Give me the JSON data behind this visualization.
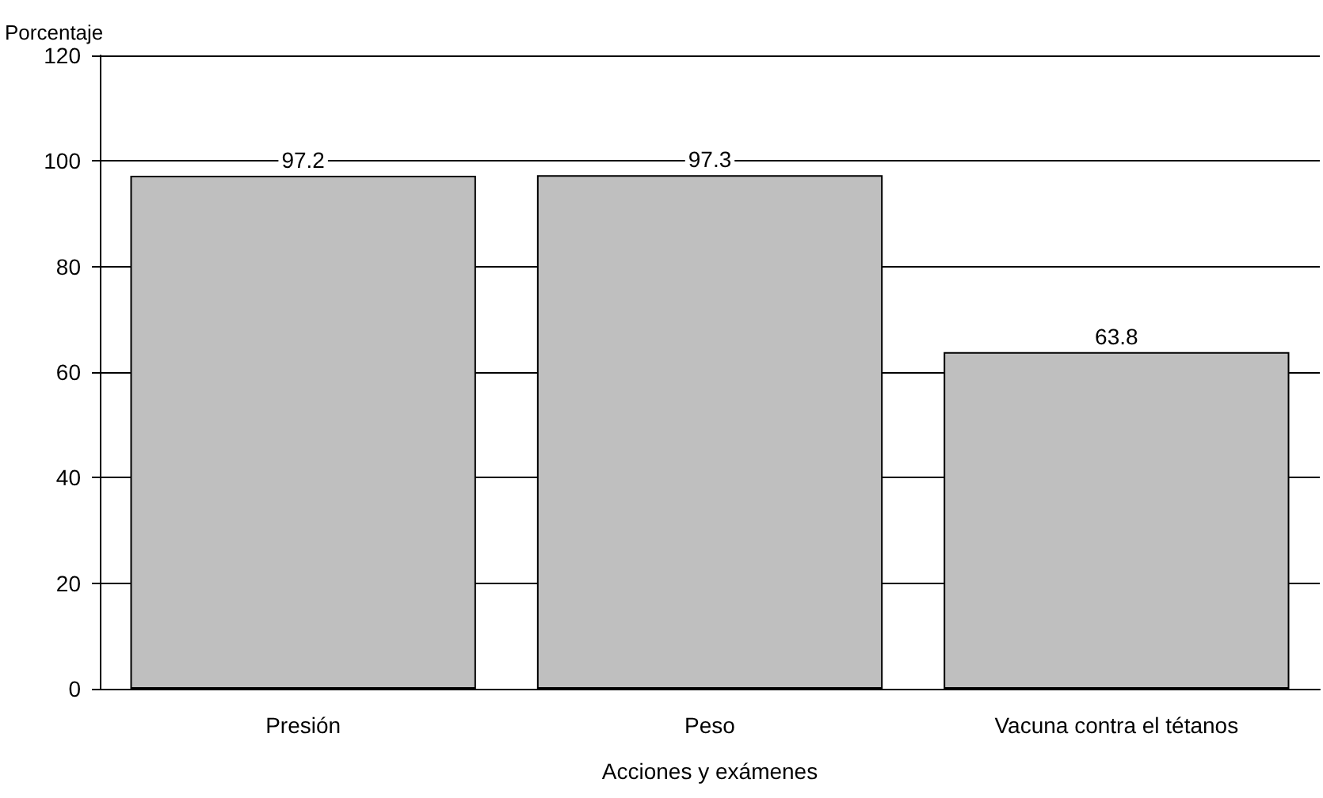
{
  "chart_data": {
    "type": "bar",
    "ylabel": "Porcentaje",
    "xlabel": "Acciones y exámenes",
    "categories": [
      "Presión",
      "Peso",
      "Vacuna contra el tétanos"
    ],
    "values": [
      97.2,
      97.3,
      63.8
    ],
    "color": "#bfbfbf",
    "ylim": [
      0,
      120
    ],
    "yticks": [
      0,
      20,
      40,
      60,
      80,
      100,
      120
    ],
    "grid": "y",
    "data_labels": true
  }
}
